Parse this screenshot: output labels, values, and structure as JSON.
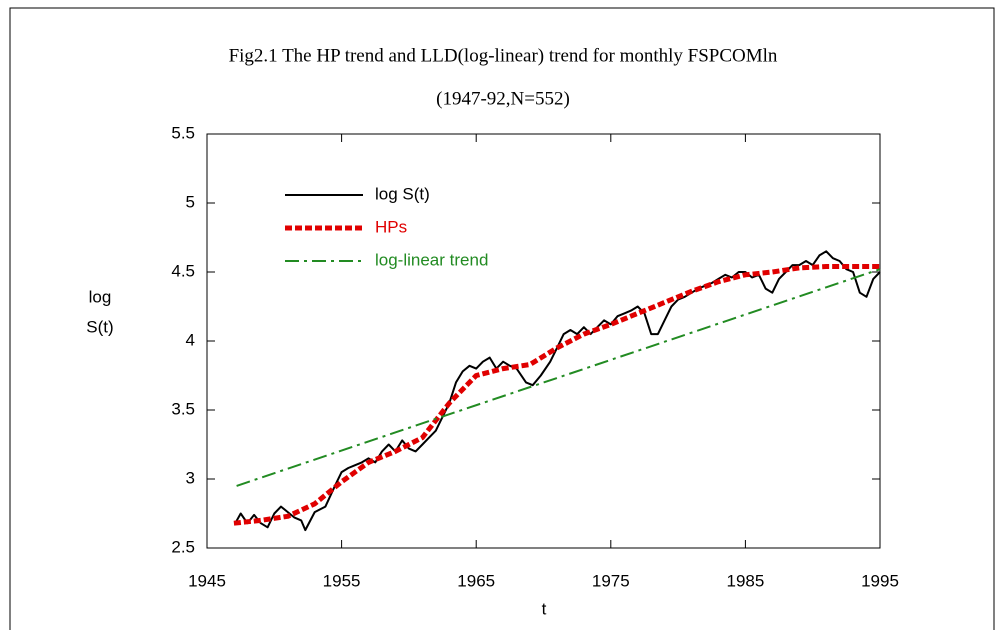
{
  "chart_data": {
    "type": "line",
    "title": "Fig2.1 The HP trend and LLD(log-linear) trend for monthly FSPCOMln",
    "subtitle": "(1947-92,N=552)",
    "xlabel": "t",
    "ylabel": [
      "log",
      "S(t)"
    ],
    "xlim": [
      1945,
      1995
    ],
    "xticks": [
      1945,
      1955,
      1965,
      1975,
      1985,
      1995
    ],
    "ylim": [
      2.5,
      5.5
    ],
    "yticks": [
      2.5,
      3,
      3.5,
      4,
      4.5,
      5,
      5.5
    ],
    "grid": false,
    "legend": "upper left",
    "series": [
      {
        "name": "log S(t)",
        "color": "#000000",
        "style": "solid",
        "x": [
          1947.1,
          1947.5,
          1948,
          1948.5,
          1949,
          1949.5,
          1950,
          1950.5,
          1951,
          1951.5,
          1952,
          1952.3,
          1953,
          1953.8,
          1954.5,
          1955,
          1955.5,
          1956,
          1956.5,
          1957,
          1957.5,
          1958,
          1958.5,
          1959,
          1959.5,
          1960,
          1960.5,
          1961,
          1961.5,
          1962,
          1962.5,
          1963,
          1963.5,
          1964,
          1964.5,
          1965,
          1965.5,
          1966,
          1966.5,
          1967,
          1967.5,
          1968,
          1968.7,
          1969.2,
          1969.8,
          1970.5,
          1971,
          1971.5,
          1972,
          1972.5,
          1973,
          1973.5,
          1974,
          1974.5,
          1975,
          1975.5,
          1976,
          1976.5,
          1977,
          1977.5,
          1978,
          1978.5,
          1979,
          1979.5,
          1980,
          1980.5,
          1981,
          1981.5,
          1982,
          1982.5,
          1983,
          1983.5,
          1984,
          1984.5,
          1985,
          1985.5,
          1986,
          1986.5,
          1987,
          1987.5,
          1988,
          1988.5,
          1989,
          1989.5,
          1990,
          1990.5,
          1991,
          1991.5,
          1992,
          1992.5,
          1993,
          1993.5,
          1994,
          1994.5,
          1995
        ],
        "values": [
          2.68,
          2.75,
          2.68,
          2.74,
          2.68,
          2.65,
          2.75,
          2.8,
          2.76,
          2.72,
          2.7,
          2.63,
          2.76,
          2.8,
          2.95,
          3.05,
          3.08,
          3.1,
          3.12,
          3.15,
          3.12,
          3.2,
          3.25,
          3.2,
          3.28,
          3.22,
          3.2,
          3.25,
          3.3,
          3.35,
          3.45,
          3.55,
          3.7,
          3.78,
          3.82,
          3.8,
          3.85,
          3.88,
          3.8,
          3.85,
          3.82,
          3.8,
          3.7,
          3.68,
          3.75,
          3.85,
          3.95,
          4.05,
          4.08,
          4.05,
          4.1,
          4.05,
          4.1,
          4.15,
          4.12,
          4.18,
          4.2,
          4.22,
          4.25,
          4.2,
          4.05,
          4.05,
          4.15,
          4.25,
          4.3,
          4.32,
          4.35,
          4.38,
          4.4,
          4.42,
          4.45,
          4.48,
          4.46,
          4.5,
          4.5,
          4.46,
          4.48,
          4.38,
          4.35,
          4.45,
          4.5,
          4.55,
          4.55,
          4.58,
          4.55,
          4.62,
          4.65,
          4.6,
          4.58,
          4.52,
          4.5,
          4.35,
          4.32,
          4.45,
          4.5
        ]
      },
      {
        "name": "HPs",
        "color": "#e00000",
        "style": "dashed",
        "x": [
          1947,
          1949,
          1951,
          1953,
          1955,
          1957,
          1959,
          1961,
          1963,
          1965,
          1967,
          1969,
          1971,
          1973,
          1975,
          1977,
          1979,
          1981,
          1983,
          1985,
          1987,
          1989,
          1991,
          1993,
          1995
        ],
        "values": [
          2.68,
          2.7,
          2.73,
          2.82,
          2.98,
          3.12,
          3.2,
          3.3,
          3.55,
          3.75,
          3.8,
          3.83,
          3.95,
          4.05,
          4.12,
          4.2,
          4.28,
          4.36,
          4.43,
          4.48,
          4.5,
          4.53,
          4.54,
          4.54,
          4.54
        ]
      },
      {
        "name": "log-linear trend",
        "color": "#228b22",
        "style": "dashdot",
        "x": [
          1947.2,
          1995
        ],
        "values": [
          2.95,
          4.52
        ]
      }
    ]
  }
}
